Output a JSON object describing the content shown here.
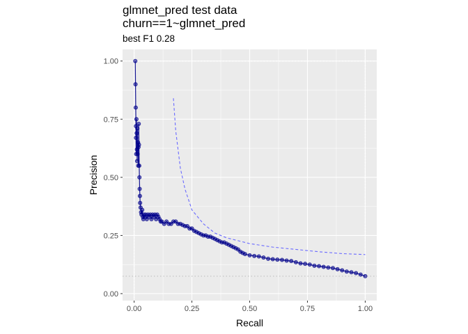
{
  "title_line1": "glmnet_pred test data",
  "title_line2": "churn==1~glmnet_pred",
  "subtitle": "best F1 0.28",
  "chart_data": {
    "type": "line",
    "title": "glmnet_pred test data\nchurn==1~glmnet_pred",
    "subtitle": "best F1 0.28",
    "xlabel": "Recall",
    "ylabel": "Precision",
    "xlim": [
      -0.05,
      1.05
    ],
    "ylim": [
      -0.03,
      1.05
    ],
    "x_ticks": [
      0,
      0.25,
      0.5,
      0.75,
      1.0
    ],
    "x_tick_labels": [
      "0.00",
      "0.25",
      "0.50",
      "0.75",
      "1.00"
    ],
    "y_ticks": [
      0,
      0.25,
      0.5,
      0.75,
      1.0
    ],
    "y_tick_labels": [
      "0.00",
      "0.25",
      "0.50",
      "0.75",
      "1.00"
    ],
    "grid": true,
    "series": [
      {
        "role": "precision-recall curve",
        "color": "#00008b",
        "points": [
          [
            0.005,
            1.0
          ],
          [
            0.006,
            0.9
          ],
          [
            0.007,
            0.8
          ],
          [
            0.008,
            0.72
          ],
          [
            0.008,
            0.67
          ],
          [
            0.009,
            0.6
          ],
          [
            0.01,
            0.75
          ],
          [
            0.011,
            0.69
          ],
          [
            0.012,
            0.62
          ],
          [
            0.013,
            0.57
          ],
          [
            0.014,
            0.71
          ],
          [
            0.015,
            0.6
          ],
          [
            0.017,
            0.65
          ],
          [
            0.018,
            0.55
          ],
          [
            0.019,
            0.63
          ],
          [
            0.02,
            0.73
          ],
          [
            0.021,
            0.64
          ],
          [
            0.022,
            0.55
          ],
          [
            0.023,
            0.5
          ],
          [
            0.024,
            0.45
          ],
          [
            0.025,
            0.42
          ],
          [
            0.026,
            0.39
          ],
          [
            0.028,
            0.37
          ],
          [
            0.03,
            0.35
          ],
          [
            0.032,
            0.34
          ],
          [
            0.035,
            0.36
          ],
          [
            0.038,
            0.33
          ],
          [
            0.04,
            0.32
          ],
          [
            0.043,
            0.34
          ],
          [
            0.046,
            0.33
          ],
          [
            0.05,
            0.34
          ],
          [
            0.055,
            0.32
          ],
          [
            0.06,
            0.34
          ],
          [
            0.065,
            0.33
          ],
          [
            0.07,
            0.34
          ],
          [
            0.075,
            0.32
          ],
          [
            0.08,
            0.34
          ],
          [
            0.085,
            0.33
          ],
          [
            0.09,
            0.34
          ],
          [
            0.095,
            0.32
          ],
          [
            0.1,
            0.34
          ],
          [
            0.105,
            0.33
          ],
          [
            0.11,
            0.32
          ],
          [
            0.115,
            0.31
          ],
          [
            0.12,
            0.31
          ],
          [
            0.13,
            0.3
          ],
          [
            0.14,
            0.31
          ],
          [
            0.15,
            0.3
          ],
          [
            0.16,
            0.3
          ],
          [
            0.17,
            0.31
          ],
          [
            0.18,
            0.31
          ],
          [
            0.19,
            0.3
          ],
          [
            0.2,
            0.3
          ],
          [
            0.21,
            0.295
          ],
          [
            0.22,
            0.29
          ],
          [
            0.23,
            0.29
          ],
          [
            0.24,
            0.28
          ],
          [
            0.25,
            0.28
          ],
          [
            0.26,
            0.27
          ],
          [
            0.27,
            0.265
          ],
          [
            0.28,
            0.26
          ],
          [
            0.29,
            0.255
          ],
          [
            0.3,
            0.25
          ],
          [
            0.31,
            0.25
          ],
          [
            0.32,
            0.245
          ],
          [
            0.33,
            0.245
          ],
          [
            0.34,
            0.24
          ],
          [
            0.35,
            0.235
          ],
          [
            0.36,
            0.23
          ],
          [
            0.37,
            0.225
          ],
          [
            0.38,
            0.22
          ],
          [
            0.39,
            0.22
          ],
          [
            0.4,
            0.215
          ],
          [
            0.41,
            0.21
          ],
          [
            0.42,
            0.205
          ],
          [
            0.43,
            0.2
          ],
          [
            0.44,
            0.195
          ],
          [
            0.45,
            0.19
          ],
          [
            0.46,
            0.18
          ],
          [
            0.47,
            0.175
          ],
          [
            0.48,
            0.17
          ],
          [
            0.5,
            0.165
          ],
          [
            0.52,
            0.162
          ],
          [
            0.54,
            0.16
          ],
          [
            0.56,
            0.155
          ],
          [
            0.58,
            0.15
          ],
          [
            0.6,
            0.148
          ],
          [
            0.62,
            0.146
          ],
          [
            0.64,
            0.145
          ],
          [
            0.66,
            0.142
          ],
          [
            0.68,
            0.14
          ],
          [
            0.7,
            0.135
          ],
          [
            0.72,
            0.13
          ],
          [
            0.74,
            0.128
          ],
          [
            0.76,
            0.125
          ],
          [
            0.78,
            0.12
          ],
          [
            0.8,
            0.118
          ],
          [
            0.82,
            0.115
          ],
          [
            0.84,
            0.112
          ],
          [
            0.86,
            0.11
          ],
          [
            0.88,
            0.105
          ],
          [
            0.9,
            0.1
          ],
          [
            0.92,
            0.095
          ],
          [
            0.94,
            0.092
          ],
          [
            0.96,
            0.088
          ],
          [
            0.98,
            0.082
          ],
          [
            1.0,
            0.075
          ]
        ]
      },
      {
        "role": "F1 = 0.28 iso-curve",
        "color": "#6a6aff",
        "style": "dashed",
        "points": [
          [
            0.17,
            0.84
          ],
          [
            0.18,
            0.7
          ],
          [
            0.2,
            0.54
          ],
          [
            0.22,
            0.45
          ],
          [
            0.25,
            0.36
          ],
          [
            0.3,
            0.3
          ],
          [
            0.35,
            0.26
          ],
          [
            0.4,
            0.24
          ],
          [
            0.5,
            0.215
          ],
          [
            0.6,
            0.2
          ],
          [
            0.7,
            0.19
          ],
          [
            0.8,
            0.18
          ],
          [
            0.9,
            0.172
          ],
          [
            1.0,
            0.168
          ]
        ]
      }
    ],
    "reference_lines": [
      {
        "orientation": "horizontal",
        "y": 1.0,
        "style": "dotted",
        "color": "#ffffff"
      },
      {
        "orientation": "horizontal",
        "y": 0.075,
        "style": "dotted",
        "color": "#c8c8c8"
      },
      {
        "orientation": "vertical",
        "x": 0.0,
        "style": "dotted",
        "color": "#ffffff"
      },
      {
        "orientation": "vertical",
        "x": 1.0,
        "style": "dotted",
        "color": "#ffffff"
      }
    ],
    "colors": {
      "panel_background": "#ebebeb",
      "grid": "#ffffff",
      "curve": "#00008b",
      "f1_curve": "#6a6aff"
    }
  }
}
